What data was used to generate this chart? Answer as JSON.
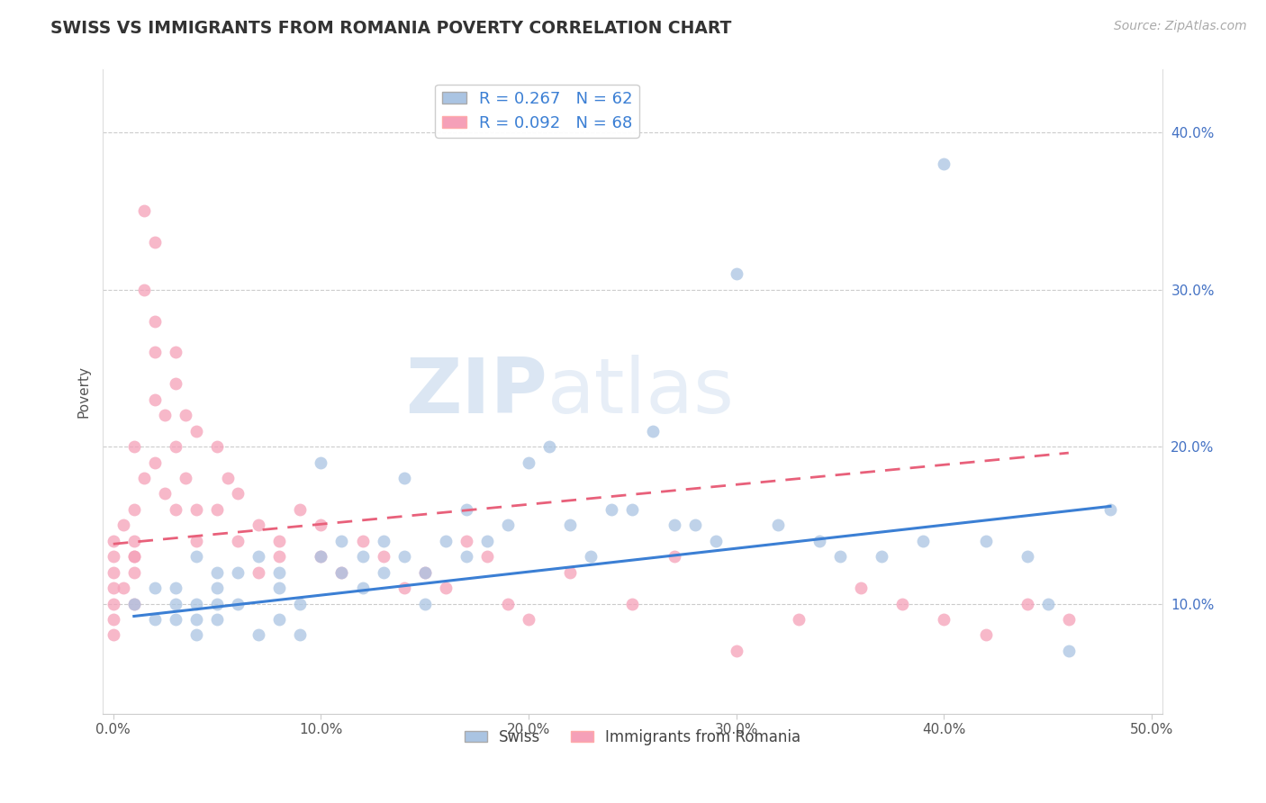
{
  "title": "SWISS VS IMMIGRANTS FROM ROMANIA POVERTY CORRELATION CHART",
  "source_text": "Source: ZipAtlas.com",
  "ylabel": "Poverty",
  "xlabel_ticks": [
    "0.0%",
    "10.0%",
    "20.0%",
    "30.0%",
    "40.0%",
    "50.0%"
  ],
  "xlabel_vals": [
    0.0,
    0.1,
    0.2,
    0.3,
    0.4,
    0.5
  ],
  "ylabel_ticks": [
    "10.0%",
    "20.0%",
    "30.0%",
    "40.0%"
  ],
  "ylabel_vals": [
    0.1,
    0.2,
    0.3,
    0.4
  ],
  "xlim": [
    -0.005,
    0.505
  ],
  "ylim": [
    0.03,
    0.44
  ],
  "swiss_R": 0.267,
  "swiss_N": 62,
  "romania_R": 0.092,
  "romania_N": 68,
  "swiss_color": "#aac4e2",
  "romania_color": "#f5a0b8",
  "swiss_line_color": "#3b7fd4",
  "romania_line_color": "#e8607a",
  "watermark_color": "#dce8f5",
  "watermark_text": "ZIPatlas",
  "legend_swiss_label": "Swiss",
  "legend_romania_label": "Immigrants from Romania",
  "swiss_scatter_x": [
    0.01,
    0.02,
    0.02,
    0.03,
    0.03,
    0.03,
    0.04,
    0.04,
    0.04,
    0.04,
    0.05,
    0.05,
    0.05,
    0.05,
    0.06,
    0.06,
    0.07,
    0.07,
    0.08,
    0.08,
    0.08,
    0.09,
    0.09,
    0.1,
    0.1,
    0.11,
    0.11,
    0.12,
    0.12,
    0.13,
    0.13,
    0.14,
    0.14,
    0.15,
    0.15,
    0.16,
    0.17,
    0.17,
    0.18,
    0.19,
    0.2,
    0.21,
    0.22,
    0.23,
    0.24,
    0.25,
    0.26,
    0.27,
    0.28,
    0.29,
    0.3,
    0.32,
    0.34,
    0.35,
    0.37,
    0.39,
    0.4,
    0.42,
    0.44,
    0.45,
    0.46,
    0.48
  ],
  "swiss_scatter_y": [
    0.1,
    0.09,
    0.11,
    0.1,
    0.11,
    0.09,
    0.1,
    0.13,
    0.09,
    0.08,
    0.1,
    0.12,
    0.09,
    0.11,
    0.1,
    0.12,
    0.08,
    0.13,
    0.12,
    0.11,
    0.09,
    0.1,
    0.08,
    0.19,
    0.13,
    0.12,
    0.14,
    0.11,
    0.13,
    0.14,
    0.12,
    0.13,
    0.18,
    0.12,
    0.1,
    0.14,
    0.13,
    0.16,
    0.14,
    0.15,
    0.19,
    0.2,
    0.15,
    0.13,
    0.16,
    0.16,
    0.21,
    0.15,
    0.15,
    0.14,
    0.31,
    0.15,
    0.14,
    0.13,
    0.13,
    0.14,
    0.38,
    0.14,
    0.13,
    0.1,
    0.07,
    0.16
  ],
  "romania_scatter_x": [
    0.0,
    0.0,
    0.0,
    0.0,
    0.0,
    0.0,
    0.0,
    0.005,
    0.005,
    0.01,
    0.01,
    0.01,
    0.01,
    0.01,
    0.01,
    0.01,
    0.015,
    0.015,
    0.015,
    0.02,
    0.02,
    0.02,
    0.02,
    0.02,
    0.025,
    0.025,
    0.03,
    0.03,
    0.03,
    0.03,
    0.035,
    0.035,
    0.04,
    0.04,
    0.04,
    0.05,
    0.05,
    0.055,
    0.06,
    0.06,
    0.07,
    0.07,
    0.08,
    0.08,
    0.09,
    0.1,
    0.1,
    0.11,
    0.12,
    0.13,
    0.14,
    0.15,
    0.16,
    0.17,
    0.18,
    0.19,
    0.2,
    0.22,
    0.25,
    0.27,
    0.3,
    0.33,
    0.36,
    0.38,
    0.4,
    0.42,
    0.44,
    0.46
  ],
  "romania_scatter_y": [
    0.1,
    0.11,
    0.12,
    0.13,
    0.14,
    0.08,
    0.09,
    0.15,
    0.11,
    0.13,
    0.14,
    0.12,
    0.16,
    0.13,
    0.2,
    0.1,
    0.35,
    0.3,
    0.18,
    0.33,
    0.28,
    0.26,
    0.23,
    0.19,
    0.17,
    0.22,
    0.26,
    0.2,
    0.24,
    0.16,
    0.22,
    0.18,
    0.21,
    0.16,
    0.14,
    0.16,
    0.2,
    0.18,
    0.14,
    0.17,
    0.15,
    0.12,
    0.14,
    0.13,
    0.16,
    0.13,
    0.15,
    0.12,
    0.14,
    0.13,
    0.11,
    0.12,
    0.11,
    0.14,
    0.13,
    0.1,
    0.09,
    0.12,
    0.1,
    0.13,
    0.07,
    0.09,
    0.11,
    0.1,
    0.09,
    0.08,
    0.1,
    0.09
  ],
  "swiss_trendline_x": [
    0.01,
    0.48
  ],
  "swiss_trendline_y": [
    0.092,
    0.162
  ],
  "romania_trendline_x": [
    0.0,
    0.46
  ],
  "romania_trendline_y": [
    0.138,
    0.196
  ]
}
